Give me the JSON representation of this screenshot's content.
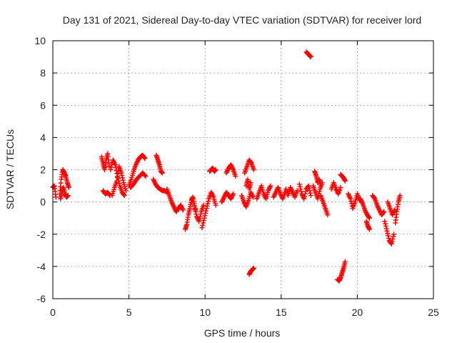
{
  "chart_data": {
    "type": "scatter",
    "title": "Day 131 of 2021, Sidereal Day-to-day VTEC variation (SDTVAR) for receiver lord",
    "xlabel": "GPS time / hours",
    "ylabel": "SDTVAR / TECUs",
    "xlim": [
      0,
      25
    ],
    "ylim": [
      -6,
      10
    ],
    "xticks": [
      0,
      5,
      10,
      15,
      20,
      25
    ],
    "yticks": [
      -6,
      -4,
      -2,
      0,
      2,
      4,
      6,
      8,
      10
    ],
    "grid": true,
    "marker": "plus",
    "color": "#ff0000",
    "series": [
      {
        "name": "SDTVAR",
        "segments": [
          {
            "x": [
              0.0,
              0.1,
              0.2
            ],
            "y": [
              0.9,
              1.0,
              0.3
            ]
          },
          {
            "x": [
              0.45,
              0.55,
              0.65,
              0.75,
              0.85,
              0.95,
              1.05
            ],
            "y": [
              0.5,
              1.4,
              2.0,
              1.8,
              1.6,
              1.2,
              0.9
            ]
          },
          {
            "x": [
              0.5,
              0.6,
              0.7,
              0.8,
              0.9,
              1.0
            ],
            "y": [
              0.2,
              0.6,
              0.9,
              0.5,
              0.3,
              0.4
            ]
          },
          {
            "x": [
              3.2,
              3.3,
              3.4,
              3.5,
              3.6,
              3.7
            ],
            "y": [
              2.8,
              2.4,
              2.0,
              2.6,
              3.0,
              2.2
            ]
          },
          {
            "x": [
              3.3,
              3.45,
              3.6,
              3.75
            ],
            "y": [
              0.7,
              0.5,
              0.6,
              0.4
            ]
          },
          {
            "x": [
              3.8,
              3.95,
              4.1,
              4.25,
              4.4,
              4.55,
              4.7
            ],
            "y": [
              2.0,
              2.6,
              2.3,
              1.6,
              1.0,
              0.6,
              0.4
            ]
          },
          {
            "x": [
              3.9,
              4.05,
              4.2,
              4.35,
              4.5,
              4.65,
              4.8
            ],
            "y": [
              0.4,
              0.9,
              1.3,
              2.2,
              1.8,
              1.2,
              0.7
            ]
          },
          {
            "x": [
              5.0,
              5.15,
              5.3,
              5.45,
              5.6,
              5.75,
              5.9,
              6.05
            ],
            "y": [
              1.0,
              1.4,
              1.9,
              2.3,
              2.6,
              2.8,
              2.9,
              2.7
            ]
          },
          {
            "x": [
              5.1,
              5.3,
              5.5,
              5.7,
              5.9,
              6.1
            ],
            "y": [
              0.9,
              1.1,
              1.4,
              1.6,
              1.8,
              1.6
            ]
          },
          {
            "x": [
              6.6,
              6.75,
              6.9,
              7.05,
              7.2,
              7.35,
              7.5
            ],
            "y": [
              1.4,
              1.1,
              0.9,
              0.8,
              0.7,
              0.7,
              0.6
            ]
          },
          {
            "x": [
              6.8,
              6.9,
              7.0,
              7.1,
              7.2
            ],
            "y": [
              2.9,
              2.6,
              2.3,
              1.9,
              1.8
            ]
          },
          {
            "x": [
              7.5,
              7.65,
              7.8,
              7.95,
              8.1,
              8.25,
              8.4,
              8.55
            ],
            "y": [
              0.8,
              0.4,
              0.0,
              -0.3,
              -0.6,
              -0.4,
              -0.2,
              -0.5
            ]
          },
          {
            "x": [
              8.7,
              8.8,
              8.9,
              9.0,
              9.1,
              9.2,
              9.3,
              9.4
            ],
            "y": [
              -1.7,
              -1.4,
              -0.8,
              -0.4,
              0.1,
              0.3,
              -0.2,
              -0.6
            ]
          },
          {
            "x": [
              9.3,
              9.45,
              9.6,
              9.75,
              9.9
            ],
            "y": [
              -0.3,
              -0.9,
              -1.2,
              -0.6,
              -0.2
            ]
          },
          {
            "x": [
              9.8,
              9.95,
              10.1,
              10.25,
              10.4,
              10.55,
              10.7
            ],
            "y": [
              -1.6,
              -1.0,
              -0.4,
              0.2,
              0.6,
              0.3,
              -0.2
            ]
          },
          {
            "x": [
              10.3,
              10.4,
              10.5,
              10.6,
              10.7
            ],
            "y": [
              1.9,
              2.0,
              2.1,
              1.9,
              2.0
            ]
          },
          {
            "x": [
              11.1,
              11.25,
              11.4,
              11.55,
              11.7,
              11.85
            ],
            "y": [
              0.0,
              0.3,
              0.6,
              0.4,
              0.2,
              0.5
            ]
          },
          {
            "x": [
              11.4,
              11.55,
              11.7,
              11.85,
              12.0
            ],
            "y": [
              1.8,
              2.1,
              2.3,
              2.0,
              1.6
            ]
          },
          {
            "x": [
              12.4,
              12.55,
              12.7,
              12.85,
              13.0,
              13.15
            ],
            "y": [
              0.4,
              0.0,
              -0.3,
              0.1,
              0.6,
              0.3
            ]
          },
          {
            "x": [
              12.6,
              12.75,
              12.9,
              13.05,
              13.2
            ],
            "y": [
              1.8,
              2.2,
              2.6,
              2.4,
              2.0
            ]
          },
          {
            "x": [
              12.7,
              12.8,
              12.9,
              13.0
            ],
            "y": [
              1.0,
              1.4,
              0.8,
              1.2
            ]
          },
          {
            "x": [
              12.9,
              13.0,
              13.1,
              13.2
            ],
            "y": [
              -4.5,
              -4.3,
              -4.2,
              -4.1
            ]
          },
          {
            "x": [
              13.4,
              13.55,
              13.7,
              13.85,
              14.0,
              14.15,
              14.3
            ],
            "y": [
              0.2,
              0.6,
              1.0,
              0.5,
              0.2,
              0.7,
              1.0
            ]
          },
          {
            "x": [
              14.5,
              14.65,
              14.8,
              14.95,
              15.1,
              15.25
            ],
            "y": [
              0.3,
              0.6,
              0.9,
              0.5,
              0.2,
              0.6
            ]
          },
          {
            "x": [
              15.3,
              15.45,
              15.6,
              15.75,
              15.9,
              16.05
            ],
            "y": [
              0.8,
              0.4,
              0.9,
              0.6,
              0.3,
              0.7
            ]
          },
          {
            "x": [
              16.2,
              16.35,
              16.5,
              16.65,
              16.8,
              16.95
            ],
            "y": [
              1.1,
              0.5,
              0.2,
              0.8,
              1.0,
              0.4
            ]
          },
          {
            "x": [
              16.65,
              16.75,
              16.85,
              16.95
            ],
            "y": [
              9.3,
              9.2,
              9.1,
              9.0
            ]
          },
          {
            "x": [
              17.1,
              17.25,
              17.4,
              17.55,
              17.7
            ],
            "y": [
              1.0,
              0.6,
              0.2,
              0.8,
              1.2
            ]
          },
          {
            "x": [
              17.2,
              17.3,
              17.4,
              17.5,
              17.6
            ],
            "y": [
              1.9,
              1.6,
              1.2,
              1.4,
              1.0
            ]
          },
          {
            "x": [
              17.6,
              17.75,
              17.9,
              18.05
            ],
            "y": [
              0.4,
              0.0,
              -0.4,
              -0.8
            ]
          },
          {
            "x": [
              18.3,
              18.45,
              18.6,
              18.75,
              18.9
            ],
            "y": [
              0.8,
              1.2,
              0.8,
              0.5,
              0.9
            ]
          },
          {
            "x": [
              18.7,
              18.8,
              18.9,
              19.0,
              19.1,
              19.2
            ],
            "y": [
              -4.8,
              -4.9,
              -4.7,
              -4.4,
              -4.1,
              -3.7
            ]
          },
          {
            "x": [
              18.9,
              19.0,
              19.1,
              19.2
            ],
            "y": [
              1.7,
              1.6,
              1.5,
              1.3
            ]
          },
          {
            "x": [
              19.4,
              19.55,
              19.7,
              19.85,
              20.0,
              20.15
            ],
            "y": [
              0.5,
              0.2,
              -0.4,
              0.0,
              0.5,
              0.1
            ]
          },
          {
            "x": [
              20.2,
              20.35,
              20.5,
              20.65,
              20.8
            ],
            "y": [
              0.2,
              -0.1,
              -0.5,
              -0.8,
              -1.0
            ]
          },
          {
            "x": [
              20.6,
              20.7,
              20.8
            ],
            "y": [
              -1.2,
              -1.5,
              -1.7
            ]
          },
          {
            "x": [
              21.0,
              21.15,
              21.3,
              21.45,
              21.6,
              21.75
            ],
            "y": [
              0.4,
              0.2,
              -0.2,
              -0.5,
              -0.8,
              -0.6
            ]
          },
          {
            "x": [
              21.8,
              21.95,
              22.1,
              22.25,
              22.4
            ],
            "y": [
              -1.2,
              -1.8,
              -2.4,
              -2.6,
              -2.0
            ]
          },
          {
            "x": [
              22.0,
              22.15,
              22.3,
              22.45
            ],
            "y": [
              0.0,
              -0.4,
              -0.8,
              -0.5
            ]
          },
          {
            "x": [
              22.5,
              22.6,
              22.7,
              22.8
            ],
            "y": [
              -1.3,
              -0.6,
              0.0,
              0.4
            ]
          }
        ]
      }
    ]
  }
}
